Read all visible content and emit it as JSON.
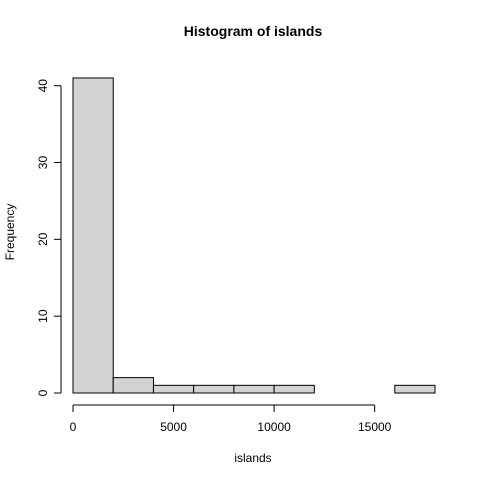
{
  "chart_data": {
    "type": "bar",
    "title": "Histogram of islands",
    "xlabel": "islands",
    "ylabel": "Frequency",
    "bin_edges": [
      0,
      2000,
      4000,
      6000,
      8000,
      10000,
      12000,
      14000,
      16000,
      18000
    ],
    "values": [
      41,
      2,
      1,
      1,
      1,
      1,
      0,
      0,
      1
    ],
    "xlim": [
      0,
      18000
    ],
    "ylim": [
      0,
      41
    ],
    "x_ticks": [
      0,
      5000,
      10000,
      15000
    ],
    "x_tick_labels": [
      "0",
      "5000",
      "10000",
      "15000"
    ],
    "y_ticks": [
      0,
      10,
      20,
      30,
      40
    ],
    "y_tick_labels": [
      "0",
      "10",
      "20",
      "30",
      "40"
    ],
    "grid": false,
    "bar_color": "#d3d3d3"
  }
}
